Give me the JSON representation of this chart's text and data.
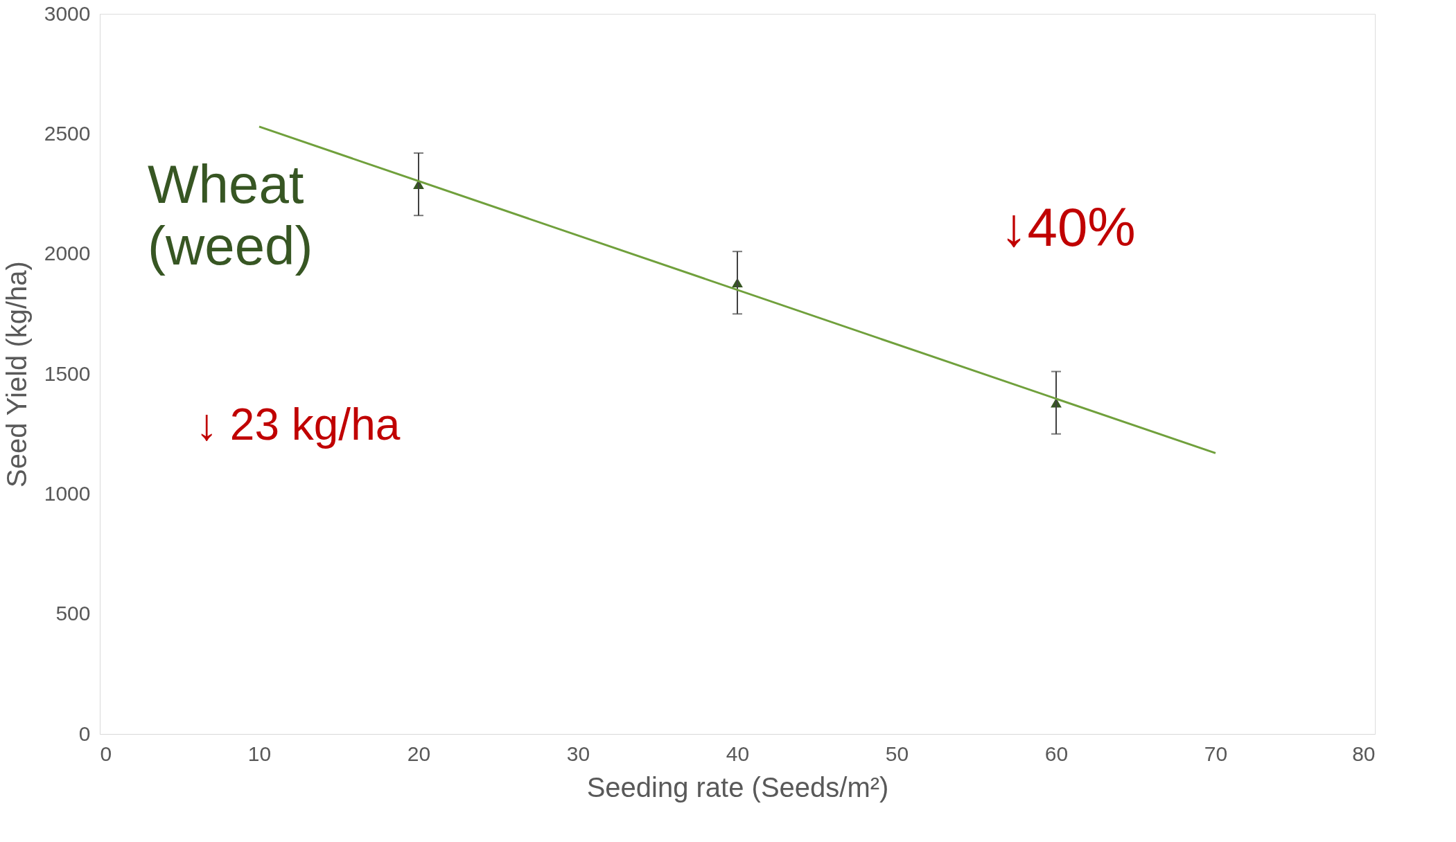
{
  "chart_data": {
    "type": "scatter",
    "xlabel": "Seeding rate (Seeds/m²)",
    "ylabel": "Seed Yield (kg/ha)",
    "xlim": [
      0,
      80
    ],
    "xticks": [
      0,
      10,
      20,
      30,
      40,
      50,
      60,
      70,
      80
    ],
    "ylim": [
      0,
      3000
    ],
    "yticks": [
      0,
      500,
      1000,
      1500,
      2000,
      2500,
      3000
    ],
    "grid": false,
    "series": [
      {
        "marker": "triangle",
        "color": "#375623",
        "x": [
          20,
          40,
          60
        ],
        "values": [
          2290,
          1880,
          1380
        ],
        "errors": [
          130,
          130,
          130
        ]
      },
      {
        "type": "line",
        "color": "#70a03c",
        "x": [
          10,
          70
        ],
        "values": [
          2530,
          1170
        ]
      }
    ],
    "annotations": [
      "Wheat (weed)",
      "↓40%",
      "↓ 23 kg/ha"
    ]
  }
}
